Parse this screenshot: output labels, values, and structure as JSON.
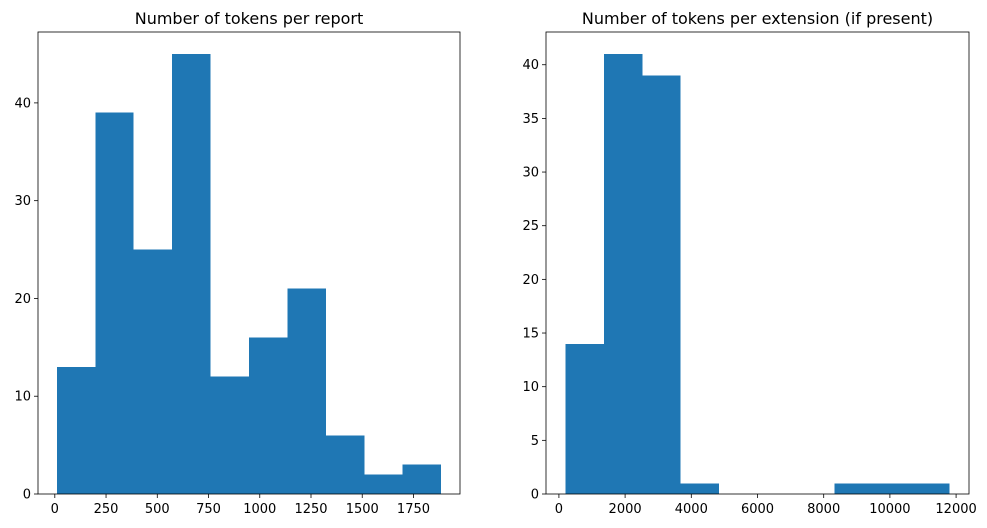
{
  "chart_data": [
    {
      "type": "bar",
      "title": "Number of tokens per report",
      "xlabel": "",
      "ylabel": "",
      "bin_edges": [
        10,
        197.5,
        385,
        572.5,
        760,
        947.5,
        1135,
        1322.5,
        1510,
        1697.5,
        1885
      ],
      "values": [
        13,
        39,
        25,
        45,
        12,
        16,
        21,
        6,
        2,
        3
      ],
      "xlim": [
        -82,
        1977
      ],
      "ylim": [
        0,
        47.25
      ],
      "xticks": [
        0,
        250,
        500,
        750,
        1000,
        1250,
        1500,
        1750
      ],
      "yticks": [
        0,
        10,
        20,
        30,
        40
      ],
      "bar_color": "#1f77b4",
      "grid": false
    },
    {
      "type": "bar",
      "title": "Number of tokens per extension (if present)",
      "xlabel": "",
      "ylabel": "",
      "bin_edges": [
        200,
        1360,
        2520,
        3680,
        4840,
        6000,
        7160,
        8320,
        9480,
        10640,
        11800
      ],
      "values": [
        14,
        41,
        39,
        1,
        0,
        0,
        0,
        1,
        1,
        1
      ],
      "xlim": [
        -390,
        12390
      ],
      "ylim": [
        0,
        43.05
      ],
      "xticks": [
        0,
        2000,
        4000,
        6000,
        8000,
        10000,
        12000
      ],
      "yticks": [
        0,
        5,
        10,
        15,
        20,
        25,
        30,
        35,
        40
      ],
      "bar_color": "#1f77b4",
      "grid": false
    }
  ]
}
